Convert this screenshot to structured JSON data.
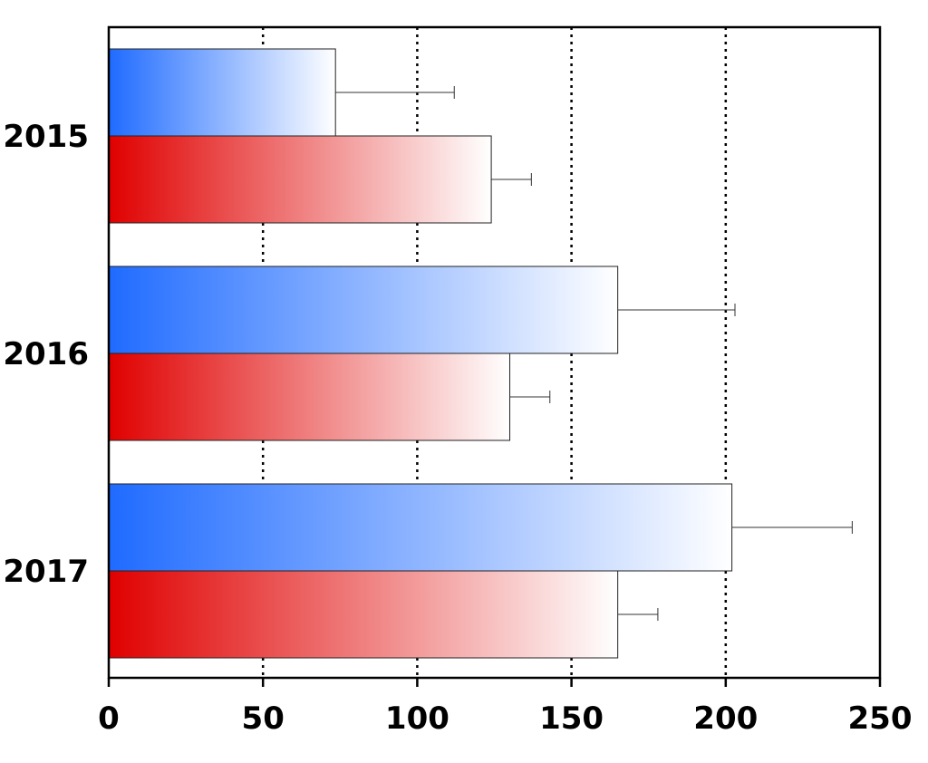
{
  "chart_data": {
    "type": "bar",
    "orientation": "horizontal",
    "title": "",
    "xlabel": "",
    "ylabel": "",
    "categories": [
      "2015",
      "2016",
      "2017"
    ],
    "series": [
      {
        "values": [
          73.5,
          165,
          202
        ],
        "errors": [
          38.5,
          38,
          39
        ],
        "color": "#1f6bff"
      },
      {
        "values": [
          124,
          130,
          165
        ],
        "errors": [
          13,
          13,
          13
        ],
        "color": "#e00000"
      }
    ],
    "xlim": [
      0,
      250
    ],
    "xticks": [
      0,
      50,
      100,
      150,
      200,
      250
    ],
    "xtick_labels": [
      "0",
      "50",
      "100",
      "150",
      "200",
      "250"
    ],
    "grid": "vertical-dotted",
    "legend": "none"
  }
}
